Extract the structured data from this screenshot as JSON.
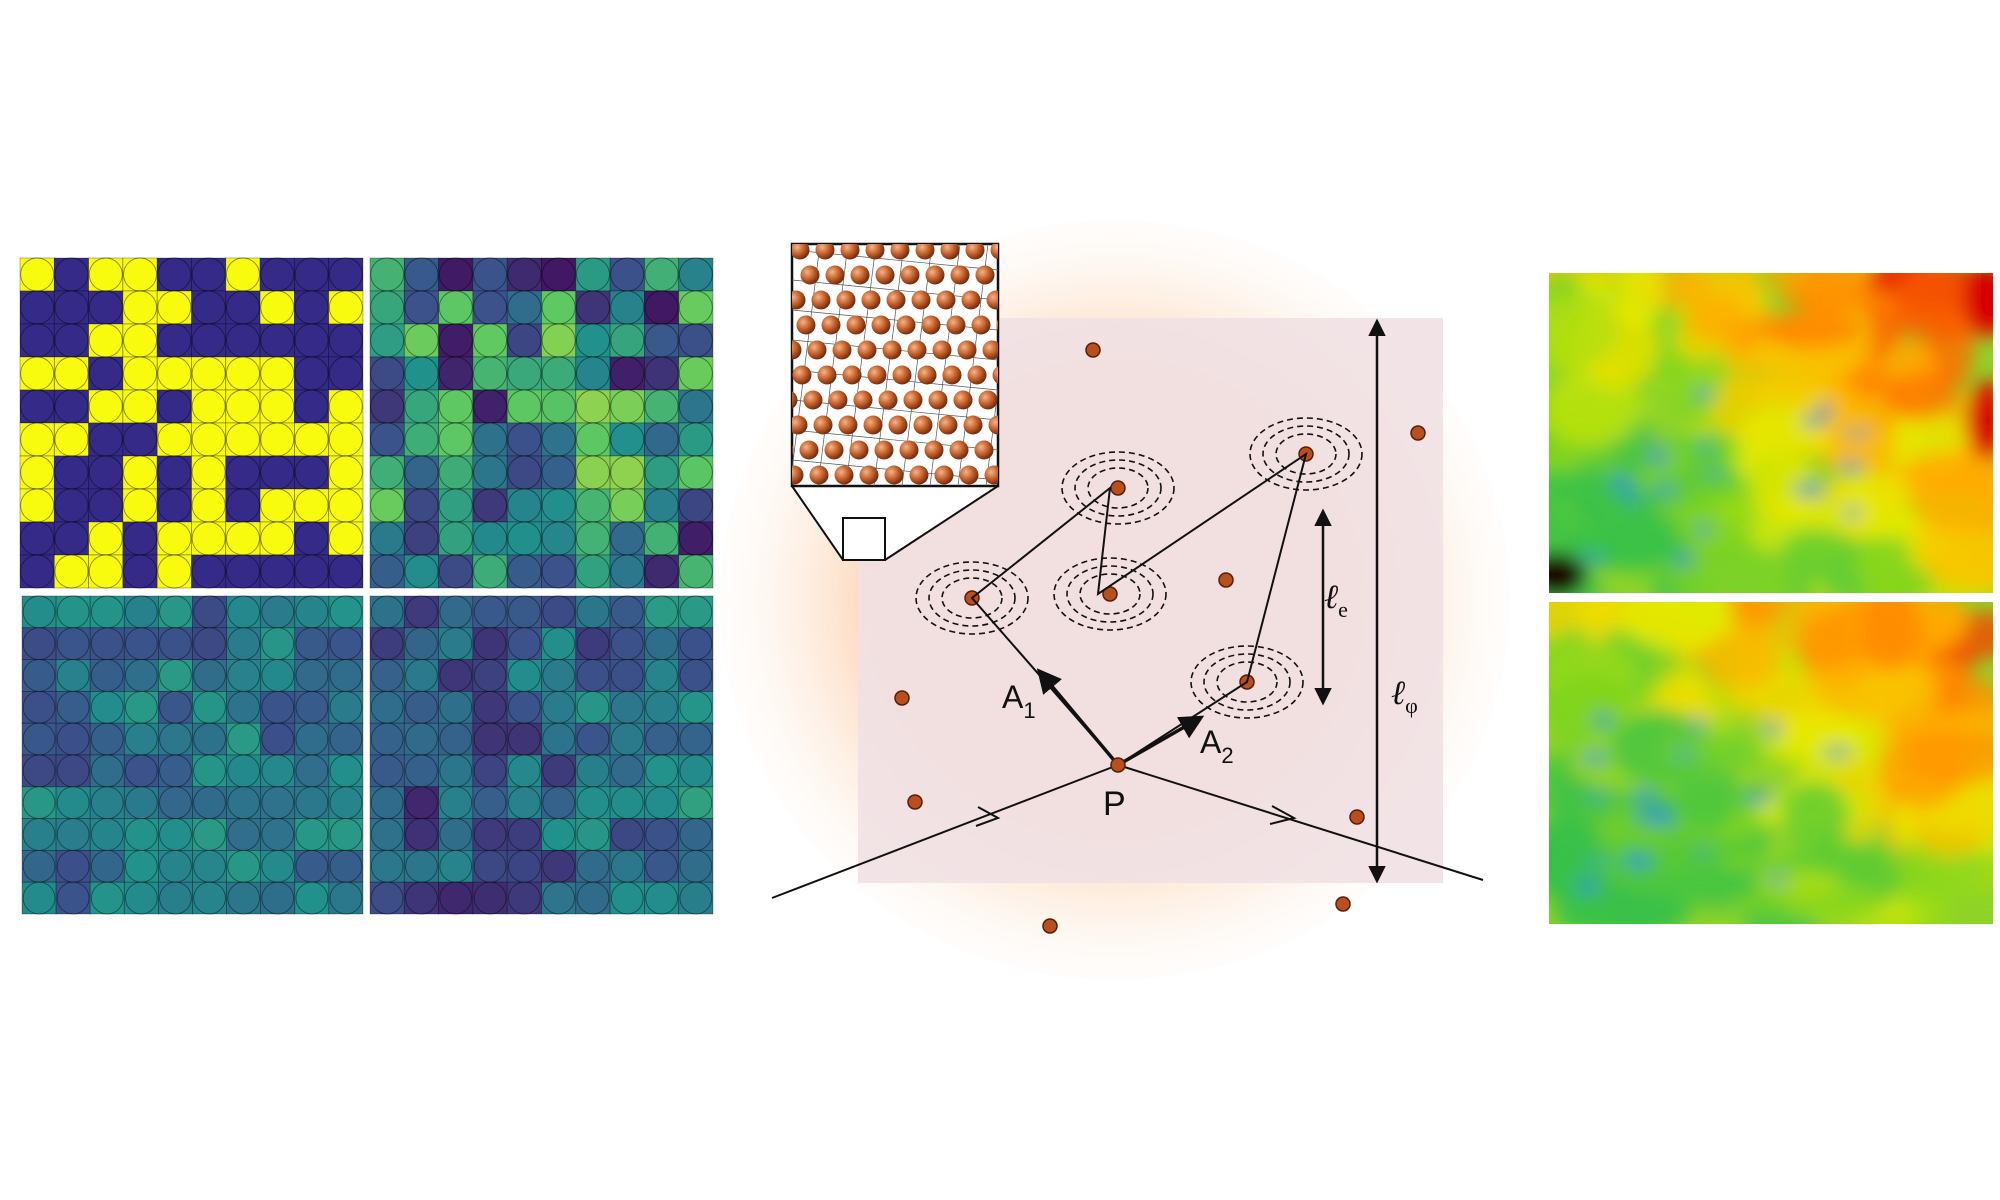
{
  "colors": {
    "viridis": [
      "#440154",
      "#3b528b",
      "#21918c",
      "#5ec962",
      "#fde725"
    ],
    "binary_low": "#352a87",
    "binary_high": "#f9fb0e",
    "atom": "#a0431b",
    "atom_fill": "#b84f1f",
    "diagram_bg": "#f3e4e6",
    "diagram_halo": "#fbd9bd",
    "heat": [
      "#1a0000",
      "#d60000",
      "#ff6a00",
      "#ffb000",
      "#e8ec00",
      "#7ed321",
      "#38c04a",
      "#2a8be0"
    ]
  },
  "lattice_panels": {
    "grid_rows": 10,
    "grid_cols": 10,
    "panels": [
      {
        "name": "binary",
        "mode": "binary",
        "fraction_high": 0.52
      },
      {
        "name": "partially-correlated",
        "mode": "mixed",
        "mean": 0.45,
        "spread": 0.38
      },
      {
        "name": "smooth-low",
        "mode": "smooth",
        "mean": 0.38,
        "spread": 0.16
      },
      {
        "name": "smooth-gradient",
        "mode": "smooth",
        "mean": 0.34,
        "spread": 0.18
      }
    ]
  },
  "diagram": {
    "point_label": "P",
    "amplitude_1": {
      "base": "A",
      "sub": "1"
    },
    "amplitude_2": {
      "base": "A",
      "sub": "2"
    },
    "elastic_length": {
      "base": "ℓ",
      "sub": "e"
    },
    "phase_length": {
      "base": "ℓ",
      "sub": "φ"
    }
  },
  "heatmaps": [
    {
      "name": "heatmap-top",
      "warm_fraction": 0.6
    },
    {
      "name": "heatmap-bottom",
      "warm_fraction": 0.45
    }
  ]
}
